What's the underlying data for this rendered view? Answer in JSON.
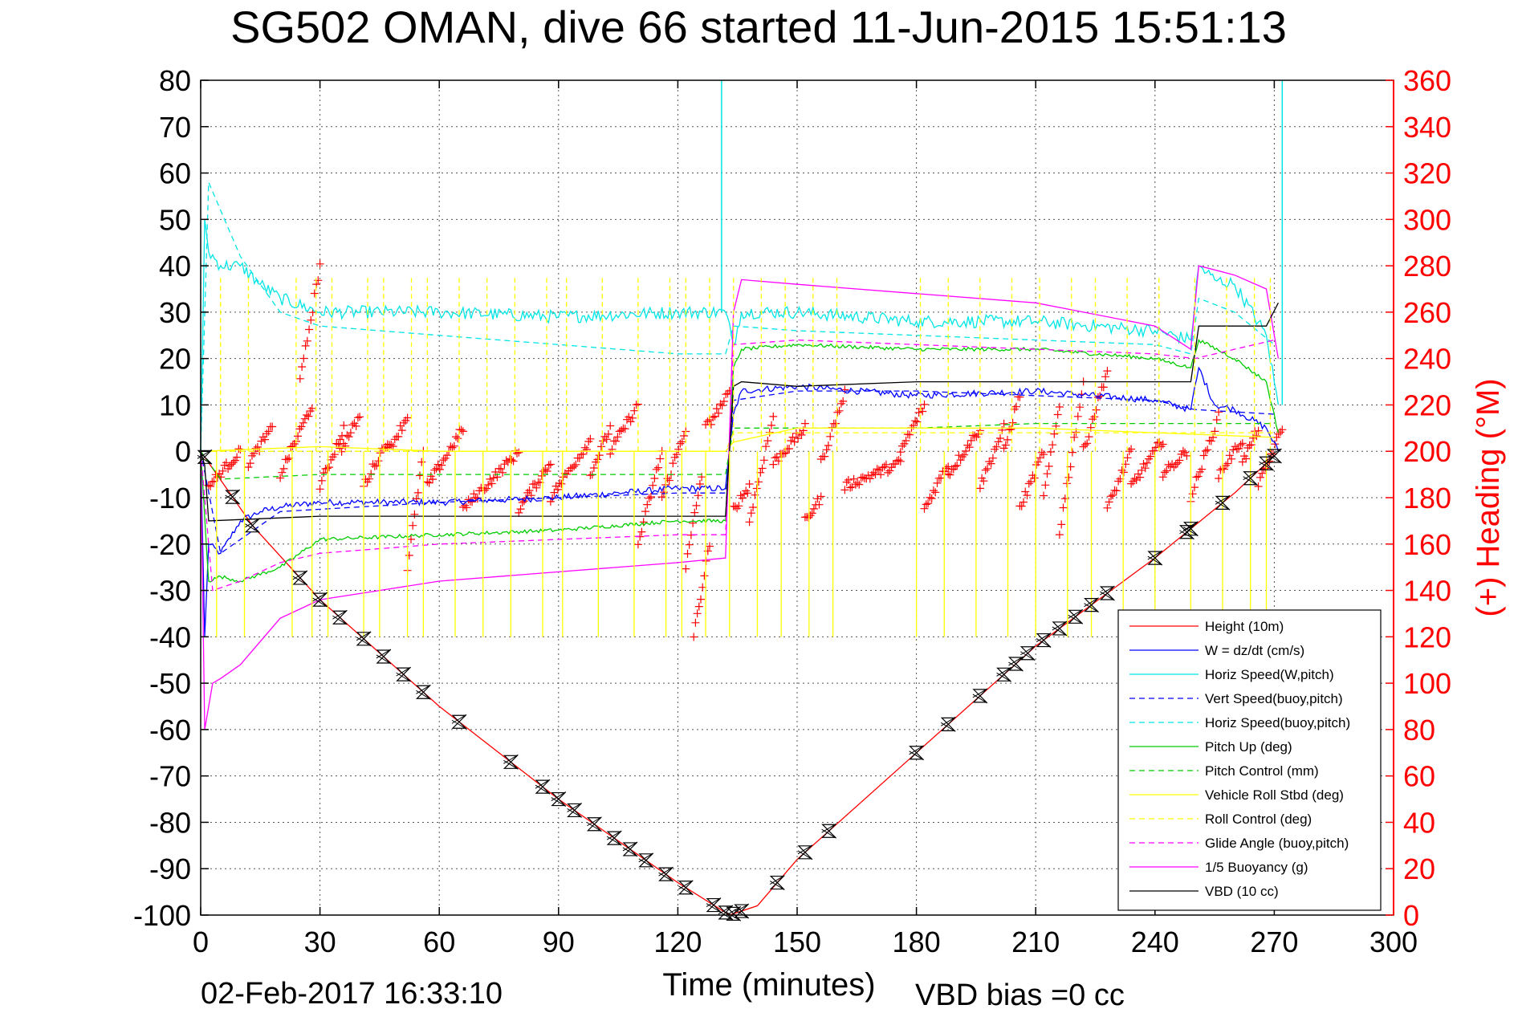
{
  "chart_data": {
    "type": "line",
    "title": "SG502 OMAN, dive 66 started 11-Jun-2015 15:51:13",
    "xlabel": "Time (minutes)",
    "ylabel_right": "(+) Heading (°M)",
    "xlim": [
      0,
      300
    ],
    "ylim": [
      -100,
      80
    ],
    "ylim_right": [
      0,
      360
    ],
    "x_ticks": [
      "0",
      "30",
      "60",
      "90",
      "120",
      "150",
      "180",
      "210",
      "240",
      "270",
      "300"
    ],
    "y_ticks": [
      "80",
      "70",
      "60",
      "50",
      "40",
      "30",
      "20",
      "10",
      "0",
      "-10",
      "-20",
      "-30",
      "-40",
      "-50",
      "-60",
      "-70",
      "-80",
      "-90",
      "-100"
    ],
    "y_right_ticks": [
      "360",
      "340",
      "320",
      "300",
      "280",
      "260",
      "240",
      "220",
      "200",
      "180",
      "160",
      "140",
      "120",
      "100",
      "80",
      "60",
      "40",
      "20",
      "0"
    ],
    "grid": true,
    "legend_position": "lower-right",
    "footer_date": "02-Feb-2017 16:33:10",
    "footer_note": "VBD bias =0 cc",
    "series": [
      {
        "name": "Height (10m)",
        "color": "#ff0000",
        "style": "solid",
        "x": [
          0,
          13,
          30,
          60,
          90,
          120,
          133,
          140,
          150,
          180,
          210,
          240,
          250,
          260,
          270
        ],
        "y": [
          0,
          -16,
          -32,
          -55,
          -75,
          -93,
          -100,
          -98,
          -88,
          -65,
          -42,
          -23,
          -16,
          -9,
          -1
        ]
      },
      {
        "name": "W = dz/dt (cm/s)",
        "color": "#0000ff",
        "style": "solid",
        "x": [
          0,
          1,
          2,
          5,
          10,
          15,
          20,
          30,
          60,
          90,
          120,
          132,
          134,
          136,
          150,
          180,
          210,
          240,
          249,
          251,
          255,
          260,
          268,
          271
        ],
        "y": [
          0,
          -40,
          -20,
          -22,
          -15,
          -13,
          -12,
          -11,
          -11,
          -10,
          -8,
          -8,
          8,
          13,
          14,
          12,
          13,
          11,
          9,
          18,
          10,
          9,
          5,
          0
        ]
      },
      {
        "name": "Horiz Speed(W,pitch)",
        "color": "#00e5e5",
        "style": "solid",
        "x": [
          0,
          1,
          2,
          5,
          10,
          15,
          20,
          30,
          60,
          90,
          120,
          132,
          134,
          136,
          150,
          180,
          210,
          240,
          249,
          251,
          255,
          260,
          268,
          271
        ],
        "y": [
          0,
          50,
          43,
          40,
          40,
          36,
          33,
          30,
          30,
          29,
          30,
          30,
          23,
          30,
          30,
          28,
          28,
          26,
          24,
          40,
          37,
          36,
          25,
          10
        ]
      },
      {
        "name": "Vert Speed(buoy,pitch)",
        "color": "#0000ff",
        "style": "dashed",
        "x": [
          0,
          5,
          20,
          60,
          90,
          120,
          132,
          134,
          150,
          180,
          210,
          240,
          250,
          270
        ],
        "y": [
          0,
          -22,
          -13,
          -11,
          -10,
          -9,
          -9,
          11,
          13,
          13,
          12,
          11,
          9,
          8
        ]
      },
      {
        "name": "Horiz Speed(buoy,pitch)",
        "color": "#00e5e5",
        "style": "dashed",
        "x": [
          0,
          2,
          10,
          20,
          30,
          60,
          90,
          120,
          132,
          134,
          150,
          180,
          210,
          240,
          249,
          251,
          260,
          270
        ],
        "y": [
          0,
          58,
          42,
          30,
          27,
          25,
          23,
          21,
          21,
          27,
          26,
          25,
          24,
          23,
          21,
          33,
          30,
          23
        ]
      },
      {
        "name": "Pitch Up (deg)",
        "color": "#00cc00",
        "style": "solid",
        "x": [
          0,
          2,
          5,
          10,
          20,
          30,
          60,
          90,
          120,
          132,
          134,
          136,
          150,
          180,
          210,
          240,
          249,
          251,
          260,
          268,
          271
        ],
        "y": [
          0,
          -28,
          -27,
          -28,
          -25,
          -19,
          -18,
          -17,
          -15,
          -15,
          18,
          22,
          23,
          22,
          22,
          20,
          18,
          24,
          20,
          15,
          4
        ]
      },
      {
        "name": "Pitch Control (mm)",
        "color": "#00cc00",
        "style": "dashed",
        "x": [
          0,
          5,
          30,
          60,
          90,
          120,
          132,
          134,
          150,
          180,
          210,
          240,
          250,
          270
        ],
        "y": [
          0,
          -6,
          -5,
          -5,
          -5,
          -5,
          -5,
          5,
          5,
          5,
          6,
          6,
          6,
          6
        ]
      },
      {
        "name": "Vehicle Roll Stbd (deg)",
        "color": "#ffff00",
        "style": "solid",
        "x": [
          0,
          30,
          60,
          90,
          120,
          132,
          134,
          150,
          180,
          210,
          240,
          270
        ],
        "y": [
          0,
          1,
          0,
          0,
          0,
          0,
          2,
          5,
          5,
          5,
          4,
          3
        ]
      },
      {
        "name": "Roll Control (deg)",
        "color": "#ffff00",
        "style": "dashed",
        "x": [
          0,
          30,
          60,
          90,
          120,
          132,
          134,
          150,
          180,
          210,
          240,
          270
        ],
        "y": [
          0,
          0,
          0,
          0,
          0,
          0,
          4,
          4,
          4,
          4,
          4,
          4
        ]
      },
      {
        "name": "Glide Angle (buoy,pitch)",
        "color": "#ff00ff",
        "style": "dashed",
        "x": [
          0,
          3,
          10,
          20,
          30,
          60,
          90,
          120,
          132,
          134,
          150,
          180,
          210,
          240,
          250,
          270
        ],
        "y": [
          0,
          -30,
          -28,
          -24,
          -22,
          -20,
          -19,
          -18,
          -18,
          23,
          24,
          23,
          22,
          21,
          20,
          24
        ]
      },
      {
        "name": "1/5 Buoyancy (g)",
        "color": "#ff00ff",
        "style": "solid",
        "x": [
          0,
          1,
          3,
          5,
          10,
          15,
          20,
          30,
          45,
          60,
          90,
          120,
          132,
          134,
          136,
          150,
          180,
          210,
          240,
          249,
          251,
          260,
          268,
          271
        ],
        "y": [
          0,
          -60,
          -50,
          -49,
          -46,
          -41,
          -36,
          -32,
          -30,
          -28,
          -26,
          -24,
          -23,
          30,
          37,
          36,
          34,
          32,
          27,
          22,
          40,
          38,
          35,
          20
        ]
      },
      {
        "name": "VBD (10 cc)",
        "color": "#000000",
        "style": "solid",
        "x": [
          0,
          1,
          2,
          30,
          60,
          90,
          120,
          132,
          134,
          136,
          150,
          180,
          210,
          240,
          249,
          251,
          268,
          271
        ],
        "y": [
          0,
          -3,
          -15,
          -14,
          -14,
          -14,
          -14,
          -14,
          14,
          15,
          14,
          15,
          15,
          15,
          15,
          27,
          27,
          32
        ]
      }
    ],
    "heading_series": {
      "color": "#ff0000",
      "marker": "+"
    },
    "height_markers": {
      "color": "#000000",
      "marker": "triangle-hourglass"
    }
  }
}
